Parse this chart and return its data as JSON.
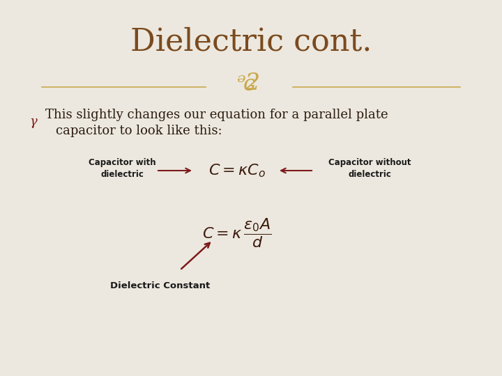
{
  "title": "Dielectric cont.",
  "title_color": "#7B4A1E",
  "title_fontsize": 32,
  "background_color": "#E8E3D8",
  "body_text_line1": "This slightly changes our equation for a parallel plate",
  "body_text_line2": "capacitor to look like this:",
  "body_color": "#2A1A0E",
  "body_fontsize": 13,
  "eq1_latex": "$C = \\kappa C_o$",
  "eq2_latex": "$C = \\kappa\\,\\dfrac{\\varepsilon_0 A}{d}$",
  "eq_color": "#3D1A0E",
  "label_cap_with": "Capacitor with\ndielectric",
  "label_cap_without": "Capacitor without\ndielectric",
  "label_diel_const": "Dielectric Constant",
  "label_color": "#1A1A1A",
  "arrow_color": "#7B1A1A",
  "divider_color": "#C9A84C",
  "ornament_color": "#C9A84C",
  "bullet_color": "#7B1A1A"
}
